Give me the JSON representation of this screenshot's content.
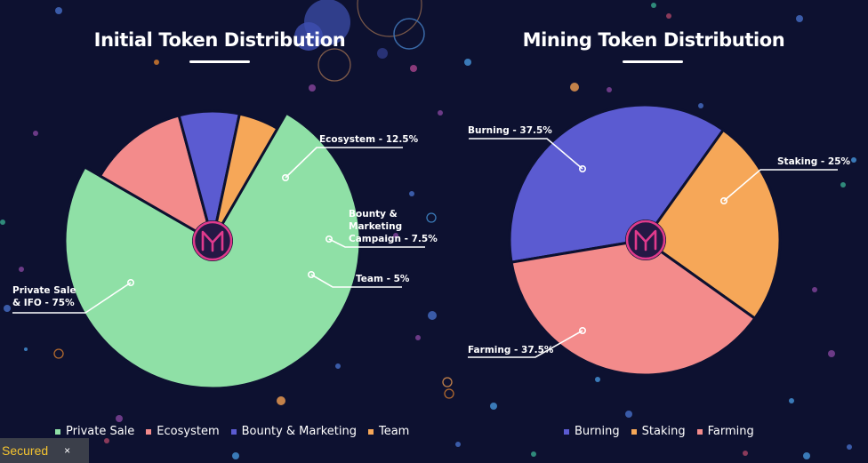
{
  "initial": {
    "title": "Initial Token Distribution",
    "legend": [
      {
        "label": "Private Sale",
        "color": "#8fe0a6"
      },
      {
        "label": "Ecosystem",
        "color": "#f38b8b"
      },
      {
        "label": "Bounty & Marketing",
        "color": "#5b5bd1"
      },
      {
        "label": "Team",
        "color": "#f6a758"
      }
    ],
    "labels": {
      "private": [
        "Private Sale",
        "& IFO - 75%"
      ],
      "ecosystem": [
        "Ecosystem - 12.5%"
      ],
      "bounty": [
        "Bounty &",
        "Marketing",
        "Campaign - 7.5%"
      ],
      "team": [
        "Team - 5%"
      ]
    }
  },
  "mining": {
    "title": "Mining Token Distribution",
    "legend": [
      {
        "label": "Burning",
        "color": "#5b5bd1"
      },
      {
        "label": "Staking",
        "color": "#f6a758"
      },
      {
        "label": "Farming",
        "color": "#f38b8b"
      }
    ],
    "labels": {
      "burning": [
        "Burning - 37.5%"
      ],
      "staking": [
        "Staking - 25%"
      ],
      "farming": [
        "Farming - 37.5%"
      ]
    }
  },
  "chart_data": [
    {
      "type": "pie",
      "title": "Initial Token Distribution",
      "categories": [
        "Private Sale & IFO",
        "Ecosystem",
        "Bounty & Marketing Campaign",
        "Team"
      ],
      "values": [
        75,
        12.5,
        7.5,
        5
      ],
      "colors": [
        "#8fe0a6",
        "#f38b8b",
        "#5b5bd1",
        "#f6a758"
      ],
      "legend_position": "bottom"
    },
    {
      "type": "pie",
      "title": "Mining Token Distribution",
      "categories": [
        "Burning",
        "Staking",
        "Farming"
      ],
      "values": [
        37.5,
        25,
        37.5
      ],
      "colors": [
        "#5b5bd1",
        "#f6a758",
        "#f38b8b"
      ],
      "legend_position": "bottom"
    }
  ],
  "footer": {
    "secured": "Secured",
    "close": "×"
  }
}
